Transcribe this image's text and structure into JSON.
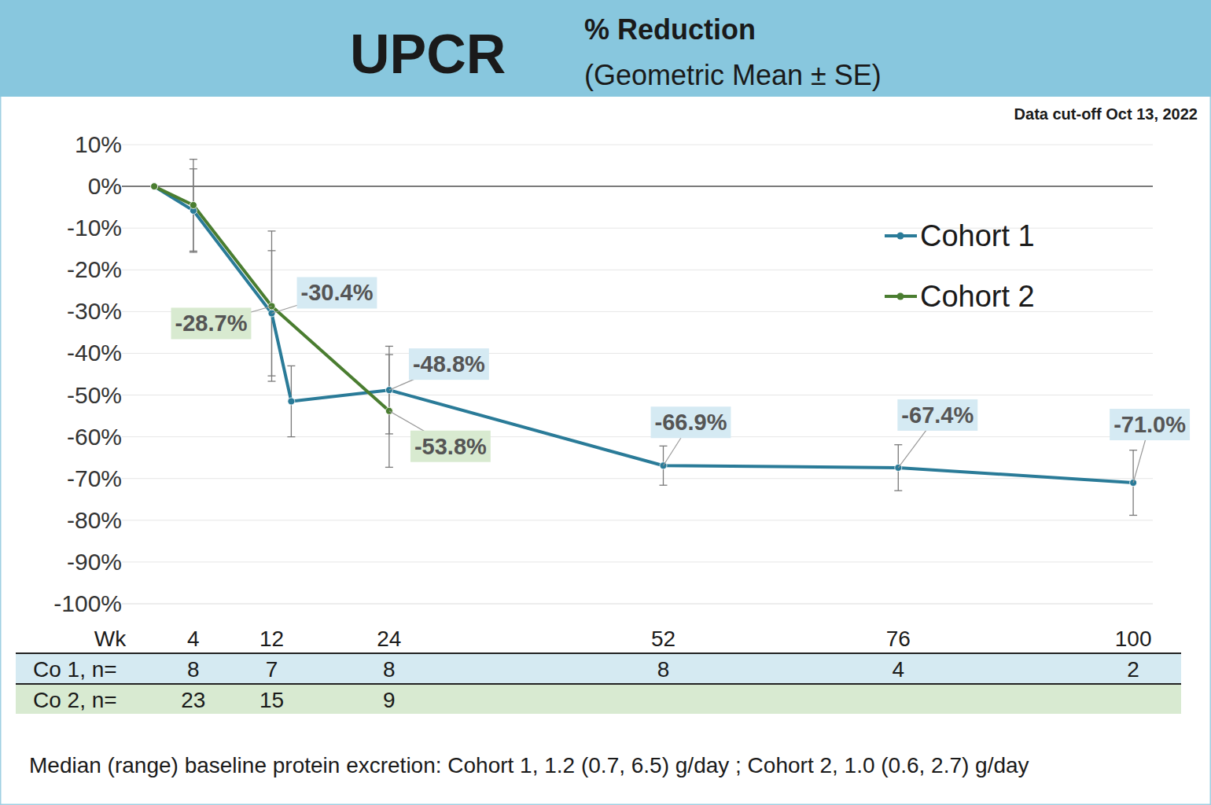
{
  "chart_data": {
    "type": "line",
    "title": "UPCR",
    "subtitle": "% Reduction",
    "subtitle_2": "(Geometric Mean ± SE)",
    "note": "Data cut-off Oct 13, 2022",
    "footnote": "Median (range) baseline protein excretion: Cohort 1, 1.2 (0.7, 6.5) g/day ; Cohort 2, 1.0 (0.6, 2.7) g/day",
    "xlabel": "Wk",
    "xlim": [
      -3.3,
      102
    ],
    "xticks": [
      4,
      12,
      24,
      52,
      76,
      100
    ],
    "ylim": [
      -100,
      10
    ],
    "yticks": [
      {
        "value": 10,
        "label": "10%"
      },
      {
        "value": 0,
        "label": "0%"
      },
      {
        "value": -10,
        "label": "-10%"
      },
      {
        "value": -20,
        "label": "-20%"
      },
      {
        "value": -30,
        "label": "-30%"
      },
      {
        "value": -40,
        "label": "-40%"
      },
      {
        "value": -50,
        "label": "-50%"
      },
      {
        "value": -60,
        "label": "-60%"
      },
      {
        "value": -70,
        "label": "-70%"
      },
      {
        "value": -80,
        "label": "-80%"
      },
      {
        "value": -90,
        "label": "-90%"
      },
      {
        "value": -100,
        "label": "-100%"
      }
    ],
    "grid": true,
    "legend": "upper right",
    "data_labels": true,
    "marker": "circle",
    "series": [
      {
        "name": "Cohort 1",
        "color": "#2a7b98",
        "x": [
          0,
          4,
          12,
          14,
          24,
          52,
          76,
          100
        ],
        "values": [
          0,
          -5.8,
          -30.4,
          -51.5,
          -48.8,
          -66.9,
          -67.4,
          -71.0
        ],
        "errors": [
          0,
          10,
          15,
          8.5,
          10.5,
          4.7,
          5.5,
          7.8
        ],
        "value_labels": [
          null,
          null,
          "-30.4%",
          null,
          "-48.8%",
          "-66.9%",
          "-67.4%",
          "-71.0%"
        ]
      },
      {
        "name": "Cohort 2",
        "color": "#4a7d30",
        "x": [
          0,
          4,
          12,
          24
        ],
        "values": [
          0,
          -4.5,
          -28.7,
          -53.8
        ],
        "errors": [
          0,
          11,
          18,
          13.5
        ],
        "value_labels": [
          null,
          null,
          "-28.7%",
          "-53.8%"
        ]
      }
    ],
    "n_table": {
      "rows": [
        {
          "label": "Co 1, n=",
          "values": [
            8,
            7,
            8,
            8,
            4,
            2
          ]
        },
        {
          "label": "Co 2, n=",
          "values": [
            23,
            15,
            9,
            null,
            null,
            null
          ]
        }
      ]
    }
  }
}
